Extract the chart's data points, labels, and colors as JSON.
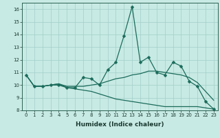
{
  "title": "",
  "xlabel": "Humidex (Indice chaleur)",
  "bg_color": "#c8eae4",
  "line_color": "#1a6b5a",
  "grid_color": "#a0cec8",
  "ylim": [
    8,
    16.5
  ],
  "xlim": [
    -0.5,
    23.5
  ],
  "yticks": [
    8,
    9,
    10,
    11,
    12,
    13,
    14,
    15,
    16
  ],
  "xticks": [
    0,
    1,
    2,
    3,
    4,
    5,
    6,
    7,
    8,
    9,
    10,
    11,
    12,
    13,
    14,
    15,
    16,
    17,
    18,
    19,
    20,
    21,
    22,
    23
  ],
  "series1_y": [
    10.8,
    9.9,
    9.9,
    10.0,
    10.0,
    9.8,
    9.8,
    10.6,
    10.5,
    10.0,
    11.2,
    11.8,
    13.9,
    16.2,
    11.8,
    12.2,
    11.0,
    10.8,
    11.8,
    11.5,
    10.3,
    9.9,
    8.7,
    8.1
  ],
  "series2_y": [
    10.8,
    9.9,
    9.9,
    10.0,
    10.1,
    9.9,
    9.9,
    9.9,
    10.0,
    10.1,
    10.3,
    10.5,
    10.6,
    10.8,
    10.9,
    11.1,
    11.1,
    11.0,
    10.9,
    10.8,
    10.6,
    10.2,
    9.5,
    8.8
  ],
  "series3_y": [
    10.8,
    9.9,
    9.9,
    10.0,
    10.1,
    9.8,
    9.7,
    9.6,
    9.5,
    9.3,
    9.1,
    8.9,
    8.8,
    8.7,
    8.6,
    8.5,
    8.4,
    8.3,
    8.3,
    8.3,
    8.3,
    8.3,
    8.2,
    8.1
  ],
  "linewidth": 0.9,
  "marker_size": 2.5,
  "tick_fontsize": 5.0,
  "xlabel_fontsize": 6.5
}
